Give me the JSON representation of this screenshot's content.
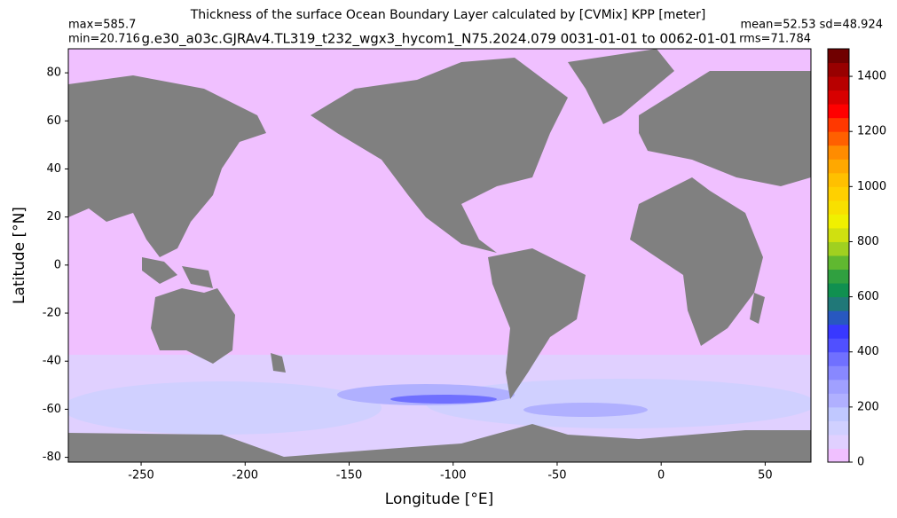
{
  "chart_data": {
    "type": "map",
    "title": "Thickness of the surface Ocean Boundary Layer calculated by [CVMix] KPP [meter]",
    "subtitle": "g.e30_a03c.GJRAv4.TL319_t232_wgx3_hycom1_N75.2024.079 0031-01-01 to 0062-01-01",
    "annotations": [
      "max=585.7",
      "min=20.716",
      "mean=52.53 sd=48.924",
      "rms=71.784"
    ],
    "x_label": "Longitude [°E]",
    "y_label": "Latitude [°N]",
    "xlim": [
      -285,
      72
    ],
    "xticks": [
      -250,
      -200,
      -150,
      -100,
      -50,
      0,
      50
    ],
    "ylim": [
      -82,
      90
    ],
    "yticks": [
      -80,
      -60,
      -40,
      -20,
      0,
      20,
      40,
      60,
      80
    ],
    "clim": [
      0,
      1500
    ],
    "cticks": [
      0,
      200,
      400,
      600,
      800,
      1000,
      1200,
      1400
    ],
    "colors": [
      "#f0c0ff",
      "#e0d0ff",
      "#d0d0ff",
      "#c0c8ff",
      "#b0b0ff",
      "#a0a0ff",
      "#8888ff",
      "#7070ff",
      "#5050ff",
      "#3838ff",
      "#2858c0",
      "#207878",
      "#109050",
      "#30a040",
      "#60b830",
      "#a0d020",
      "#d0e010",
      "#f0f000",
      "#f8e000",
      "#ffd000",
      "#ffc000",
      "#ffa800",
      "#ff8c00",
      "#ff6000",
      "#ff3800",
      "#ff0000",
      "#d80000",
      "#b80000",
      "#980000",
      "#700000"
    ],
    "land_color": "#808080"
  }
}
